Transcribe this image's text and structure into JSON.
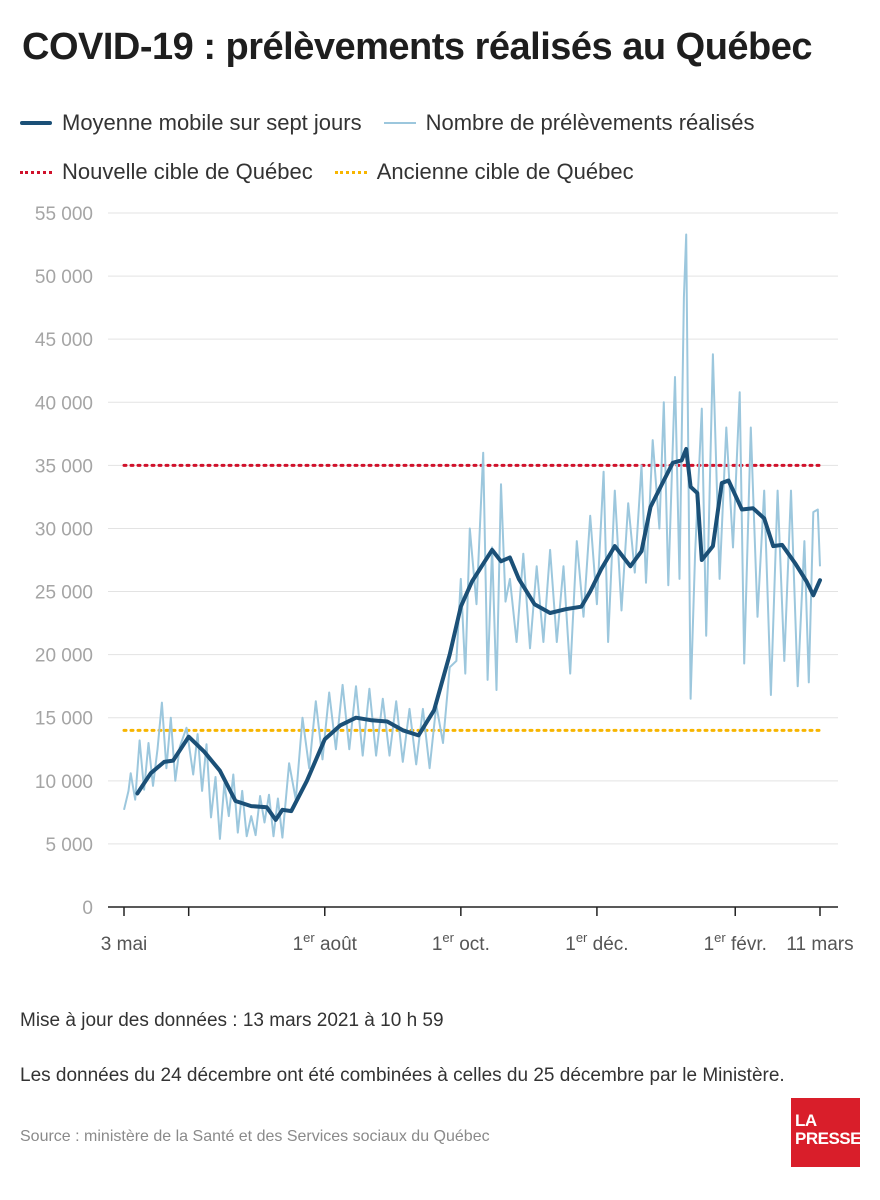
{
  "header": {
    "title": "COVID-19 : prélèvements réalisés au Québec"
  },
  "legend": {
    "moving_avg": "Moyenne mobile sur sept jours",
    "daily": "Nombre de prélèvements réalisés",
    "new_target": "Nouvelle cible de Québec",
    "old_target": "Ancienne cible de Québec"
  },
  "notes": {
    "updated": "Mise à jour des données : 13 mars 2021 à 10 h 59",
    "combined": "Les données du 24 décembre ont été combinées à celles du 25 décembre par le Ministère.",
    "source": "Source : ministère de la Santé et des Services sociaux du Québec"
  },
  "logo": {
    "line1": "LA",
    "line2": "PRESSE"
  },
  "colors": {
    "moving_avg": "#1b5077",
    "daily": "#9cc7dd",
    "new_target": "#d0112b",
    "old_target": "#f7b500",
    "logo_bg": "#d91e2a"
  },
  "chart_data": {
    "type": "line",
    "title": "COVID-19 : prélèvements réalisés au Québec",
    "x_start": "2020-05-03",
    "x_end": "2021-03-11",
    "ylim": [
      0,
      55000
    ],
    "yticks": [
      0,
      5000,
      10000,
      15000,
      20000,
      25000,
      30000,
      35000,
      40000,
      45000,
      50000,
      55000
    ],
    "ytick_labels": [
      "0",
      "5 000",
      "10 000",
      "15 000",
      "20 000",
      "25 000",
      "30 000",
      "35 000",
      "40 000",
      "45 000",
      "50 000",
      "55 000"
    ],
    "xticks": [
      {
        "date": "2020-05-03",
        "label": "3 mai",
        "sup": ""
      },
      {
        "date": "2020-06-01",
        "label": "",
        "sup": ""
      },
      {
        "date": "2020-08-01",
        "label": "août",
        "sup": "er",
        "prefix": "1"
      },
      {
        "date": "2020-10-01",
        "label": "oct.",
        "sup": "er",
        "prefix": "1"
      },
      {
        "date": "2020-12-01",
        "label": "déc.",
        "sup": "er",
        "prefix": "1"
      },
      {
        "date": "2021-02-01",
        "label": "févr.",
        "sup": "er",
        "prefix": "1"
      },
      {
        "date": "2021-03-11",
        "label": "11 mars",
        "sup": ""
      }
    ],
    "grid": true,
    "targets": [
      {
        "name": "Nouvelle cible de Québec",
        "value": 35000,
        "from": "2020-05-03",
        "to": "2021-03-11"
      },
      {
        "name": "Ancienne cible de Québec",
        "value": 14000,
        "from": "2020-05-03",
        "to": "2021-03-11"
      }
    ],
    "series": [
      {
        "name": "Moyenne mobile sur sept jours",
        "points": [
          [
            "2020-05-09",
            9000
          ],
          [
            "2020-05-15",
            10600
          ],
          [
            "2020-05-21",
            11500
          ],
          [
            "2020-05-25",
            11600
          ],
          [
            "2020-06-01",
            13500
          ],
          [
            "2020-06-08",
            12300
          ],
          [
            "2020-06-15",
            10800
          ],
          [
            "2020-06-22",
            8400
          ],
          [
            "2020-06-29",
            8000
          ],
          [
            "2020-07-06",
            7900
          ],
          [
            "2020-07-10",
            6900
          ],
          [
            "2020-07-13",
            7700
          ],
          [
            "2020-07-17",
            7600
          ],
          [
            "2020-07-24",
            10000
          ],
          [
            "2020-08-01",
            13300
          ],
          [
            "2020-08-08",
            14400
          ],
          [
            "2020-08-15",
            15000
          ],
          [
            "2020-08-22",
            14800
          ],
          [
            "2020-08-29",
            14700
          ],
          [
            "2020-09-05",
            14000
          ],
          [
            "2020-09-12",
            13600
          ],
          [
            "2020-09-19",
            15600
          ],
          [
            "2020-09-26",
            20000
          ],
          [
            "2020-10-01",
            23800
          ],
          [
            "2020-10-06",
            25800
          ],
          [
            "2020-10-11",
            27200
          ],
          [
            "2020-10-15",
            28300
          ],
          [
            "2020-10-19",
            27400
          ],
          [
            "2020-10-23",
            27700
          ],
          [
            "2020-10-27",
            26000
          ],
          [
            "2020-11-03",
            24000
          ],
          [
            "2020-11-10",
            23300
          ],
          [
            "2020-11-17",
            23600
          ],
          [
            "2020-11-24",
            23800
          ],
          [
            "2020-11-28",
            25000
          ],
          [
            "2020-12-03",
            26800
          ],
          [
            "2020-12-09",
            28600
          ],
          [
            "2020-12-16",
            27000
          ],
          [
            "2020-12-21",
            28200
          ],
          [
            "2020-12-25",
            31700
          ],
          [
            "2020-12-31",
            33800
          ],
          [
            "2021-01-04",
            35200
          ],
          [
            "2021-01-08",
            35400
          ],
          [
            "2021-01-10",
            36300
          ],
          [
            "2021-01-12",
            33300
          ],
          [
            "2021-01-15",
            32800
          ],
          [
            "2021-01-17",
            27500
          ],
          [
            "2021-01-22",
            28600
          ],
          [
            "2021-01-26",
            33600
          ],
          [
            "2021-01-29",
            33800
          ],
          [
            "2021-02-04",
            31500
          ],
          [
            "2021-02-09",
            31600
          ],
          [
            "2021-02-14",
            30800
          ],
          [
            "2021-02-18",
            28600
          ],
          [
            "2021-02-22",
            28700
          ],
          [
            "2021-02-28",
            27200
          ],
          [
            "2021-03-05",
            25800
          ],
          [
            "2021-03-08",
            24700
          ],
          [
            "2021-03-11",
            25900
          ]
        ]
      },
      {
        "name": "Nombre de prélèvements réalisés",
        "points": [
          [
            "2020-05-03",
            7700
          ],
          [
            "2020-05-05",
            9200
          ],
          [
            "2020-05-06",
            10600
          ],
          [
            "2020-05-08",
            8500
          ],
          [
            "2020-05-10",
            13200
          ],
          [
            "2020-05-12",
            9300
          ],
          [
            "2020-05-14",
            13000
          ],
          [
            "2020-05-16",
            9600
          ],
          [
            "2020-05-18",
            12500
          ],
          [
            "2020-05-20",
            16200
          ],
          [
            "2020-05-22",
            11000
          ],
          [
            "2020-05-24",
            15000
          ],
          [
            "2020-05-26",
            10000
          ],
          [
            "2020-05-28",
            12700
          ],
          [
            "2020-05-31",
            14200
          ],
          [
            "2020-06-03",
            10500
          ],
          [
            "2020-06-05",
            13700
          ],
          [
            "2020-06-07",
            9200
          ],
          [
            "2020-06-09",
            12900
          ],
          [
            "2020-06-11",
            7100
          ],
          [
            "2020-06-13",
            10300
          ],
          [
            "2020-06-15",
            5400
          ],
          [
            "2020-06-17",
            9800
          ],
          [
            "2020-06-19",
            7200
          ],
          [
            "2020-06-21",
            10500
          ],
          [
            "2020-06-23",
            5900
          ],
          [
            "2020-06-25",
            9200
          ],
          [
            "2020-06-27",
            5600
          ],
          [
            "2020-06-29",
            7200
          ],
          [
            "2020-07-01",
            5700
          ],
          [
            "2020-07-03",
            8800
          ],
          [
            "2020-07-05",
            6700
          ],
          [
            "2020-07-07",
            8900
          ],
          [
            "2020-07-09",
            5600
          ],
          [
            "2020-07-11",
            8600
          ],
          [
            "2020-07-13",
            5500
          ],
          [
            "2020-07-16",
            11400
          ],
          [
            "2020-07-19",
            8500
          ],
          [
            "2020-07-22",
            15000
          ],
          [
            "2020-07-25",
            11000
          ],
          [
            "2020-07-28",
            16300
          ],
          [
            "2020-07-31",
            11700
          ],
          [
            "2020-08-03",
            17000
          ],
          [
            "2020-08-06",
            12500
          ],
          [
            "2020-08-09",
            17600
          ],
          [
            "2020-08-12",
            12500
          ],
          [
            "2020-08-15",
            17500
          ],
          [
            "2020-08-18",
            12000
          ],
          [
            "2020-08-21",
            17300
          ],
          [
            "2020-08-24",
            12000
          ],
          [
            "2020-08-27",
            16500
          ],
          [
            "2020-08-30",
            12000
          ],
          [
            "2020-09-02",
            16300
          ],
          [
            "2020-09-05",
            11500
          ],
          [
            "2020-09-08",
            15700
          ],
          [
            "2020-09-11",
            11300
          ],
          [
            "2020-09-14",
            15700
          ],
          [
            "2020-09-17",
            11000
          ],
          [
            "2020-09-20",
            16000
          ],
          [
            "2020-09-23",
            13000
          ],
          [
            "2020-09-26",
            19000
          ],
          [
            "2020-09-29",
            19500
          ],
          [
            "2020-10-01",
            26000
          ],
          [
            "2020-10-03",
            18500
          ],
          [
            "2020-10-05",
            30000
          ],
          [
            "2020-10-08",
            24000
          ],
          [
            "2020-10-11",
            36000
          ],
          [
            "2020-10-13",
            18000
          ],
          [
            "2020-10-15",
            28500
          ],
          [
            "2020-10-17",
            17200
          ],
          [
            "2020-10-19",
            33500
          ],
          [
            "2020-10-21",
            24200
          ],
          [
            "2020-10-23",
            26000
          ],
          [
            "2020-10-26",
            21000
          ],
          [
            "2020-10-29",
            28000
          ],
          [
            "2020-11-01",
            20500
          ],
          [
            "2020-11-04",
            27000
          ],
          [
            "2020-11-07",
            21000
          ],
          [
            "2020-11-10",
            28300
          ],
          [
            "2020-11-13",
            21000
          ],
          [
            "2020-11-16",
            27000
          ],
          [
            "2020-11-19",
            18500
          ],
          [
            "2020-11-22",
            29000
          ],
          [
            "2020-11-25",
            23000
          ],
          [
            "2020-11-28",
            31000
          ],
          [
            "2020-12-01",
            24000
          ],
          [
            "2020-12-04",
            34500
          ],
          [
            "2020-12-06",
            21000
          ],
          [
            "2020-12-09",
            33000
          ],
          [
            "2020-12-12",
            23500
          ],
          [
            "2020-12-15",
            32000
          ],
          [
            "2020-12-18",
            26500
          ],
          [
            "2020-12-21",
            35000
          ],
          [
            "2020-12-23",
            25700
          ],
          [
            "2020-12-26",
            37000
          ],
          [
            "2020-12-29",
            30000
          ],
          [
            "2020-12-31",
            40000
          ],
          [
            "2021-01-02",
            25500
          ],
          [
            "2021-01-05",
            42000
          ],
          [
            "2021-01-07",
            26000
          ],
          [
            "2021-01-09",
            48300
          ],
          [
            "2021-01-10",
            53300
          ],
          [
            "2021-01-12",
            16500
          ],
          [
            "2021-01-14",
            28000
          ],
          [
            "2021-01-17",
            39500
          ],
          [
            "2021-01-19",
            21500
          ],
          [
            "2021-01-22",
            43800
          ],
          [
            "2021-01-25",
            26000
          ],
          [
            "2021-01-28",
            38000
          ],
          [
            "2021-01-31",
            28500
          ],
          [
            "2021-02-03",
            40800
          ],
          [
            "2021-02-05",
            19300
          ],
          [
            "2021-02-08",
            38000
          ],
          [
            "2021-02-11",
            23000
          ],
          [
            "2021-02-14",
            33000
          ],
          [
            "2021-02-17",
            16800
          ],
          [
            "2021-02-20",
            33000
          ],
          [
            "2021-02-23",
            19500
          ],
          [
            "2021-02-26",
            33000
          ],
          [
            "2021-03-01",
            17500
          ],
          [
            "2021-03-04",
            29000
          ],
          [
            "2021-03-06",
            17800
          ],
          [
            "2021-03-08",
            31300
          ],
          [
            "2021-03-10",
            31500
          ],
          [
            "2021-03-11",
            27000
          ]
        ]
      }
    ]
  }
}
